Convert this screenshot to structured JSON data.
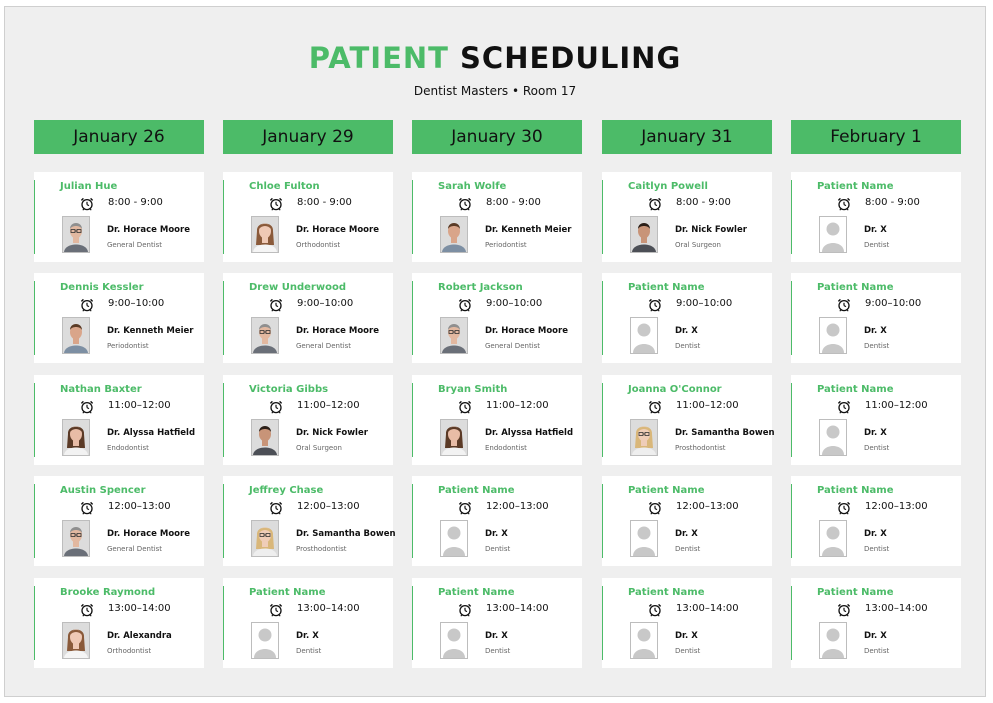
{
  "title": {
    "part1": "PATIENT",
    "part2": "SCHEDULING"
  },
  "subtitle": "Dentist Masters • Room 17",
  "colors": {
    "accent": "#4cbb68",
    "background": "#efefef",
    "card": "#ffffff"
  },
  "columns": [
    {
      "date": "January 26",
      "appointments": [
        {
          "patient": "Julian Hue",
          "time": "8:00 - 9:00",
          "doctor": "Dr. Horace Moore",
          "specialty": "General Dentist",
          "avatar": "male-glasses-grey"
        },
        {
          "patient": "Dennis Kessler",
          "time": "9:00–10:00",
          "doctor": "Dr. Kenneth Meier",
          "specialty": "Periodontist",
          "avatar": "male-brown"
        },
        {
          "patient": "Nathan Baxter",
          "time": "11:00–12:00",
          "doctor": "Dr. Alyssa Hatfield",
          "specialty": "Endodontist",
          "avatar": "female-brown"
        },
        {
          "patient": "Austin Spencer",
          "time": "12:00–13:00",
          "doctor": "Dr. Horace Moore",
          "specialty": "General Dentist",
          "avatar": "male-glasses-grey"
        },
        {
          "patient": "Brooke Raymond",
          "time": "13:00–14:00",
          "doctor": "Dr. Alexandra",
          "specialty": "Orthodontist",
          "avatar": "female-light"
        }
      ]
    },
    {
      "date": "January 29",
      "appointments": [
        {
          "patient": "Chloe Fulton",
          "time": "8:00 - 9:00",
          "doctor": "Dr. Horace Moore",
          "specialty": "Orthodontist",
          "avatar": "female-light"
        },
        {
          "patient": "Drew Underwood",
          "time": "9:00–10:00",
          "doctor": "Dr. Horace Moore",
          "specialty": "General Dentist",
          "avatar": "male-glasses-grey"
        },
        {
          "patient": "Victoria Gibbs",
          "time": "11:00–12:00",
          "doctor": "Dr. Nick Fowler",
          "specialty": "Oral Surgeon",
          "avatar": "male-dark"
        },
        {
          "patient": "Jeffrey Chase",
          "time": "12:00–13:00",
          "doctor": "Dr. Samantha Bowen",
          "specialty": "Prosthodontist",
          "avatar": "female-blonde"
        },
        {
          "patient": "Patient Name",
          "time": "13:00–14:00",
          "doctor": "Dr. X",
          "specialty": "Dentist",
          "avatar": "placeholder"
        }
      ]
    },
    {
      "date": "January 30",
      "appointments": [
        {
          "patient": "Sarah Wolfe",
          "time": "8:00 - 9:00",
          "doctor": "Dr. Kenneth Meier",
          "specialty": "Periodontist",
          "avatar": "male-brown"
        },
        {
          "patient": "Robert Jackson",
          "time": "9:00–10:00",
          "doctor": "Dr. Horace Moore",
          "specialty": "General Dentist",
          "avatar": "male-glasses-grey"
        },
        {
          "patient": "Bryan Smith",
          "time": "11:00–12:00",
          "doctor": "Dr. Alyssa Hatfield",
          "specialty": "Endodontist",
          "avatar": "female-brown"
        },
        {
          "patient": "Patient Name",
          "time": "12:00–13:00",
          "doctor": "Dr. X",
          "specialty": "Dentist",
          "avatar": "placeholder"
        },
        {
          "patient": "Patient Name",
          "time": "13:00–14:00",
          "doctor": "Dr. X",
          "specialty": "Dentist",
          "avatar": "placeholder"
        }
      ]
    },
    {
      "date": "January 31",
      "appointments": [
        {
          "patient": "Caitlyn Powell",
          "time": "8:00 - 9:00",
          "doctor": "Dr. Nick Fowler",
          "specialty": "Oral Surgeon",
          "avatar": "male-dark"
        },
        {
          "patient": "Patient Name",
          "time": "9:00–10:00",
          "doctor": "Dr. X",
          "specialty": "Dentist",
          "avatar": "placeholder"
        },
        {
          "patient": "Joanna O'Connor",
          "time": "11:00–12:00",
          "doctor": "Dr. Samantha Bowen",
          "specialty": "Prosthodontist",
          "avatar": "female-blonde"
        },
        {
          "patient": "Patient Name",
          "time": "12:00–13:00",
          "doctor": "Dr. X",
          "specialty": "Dentist",
          "avatar": "placeholder"
        },
        {
          "patient": "Patient Name",
          "time": "13:00–14:00",
          "doctor": "Dr. X",
          "specialty": "Dentist",
          "avatar": "placeholder"
        }
      ]
    },
    {
      "date": "February 1",
      "appointments": [
        {
          "patient": "Patient Name",
          "time": "8:00 - 9:00",
          "doctor": "Dr. X",
          "specialty": "Dentist",
          "avatar": "placeholder"
        },
        {
          "patient": "Patient Name",
          "time": "9:00–10:00",
          "doctor": "Dr. X",
          "specialty": "Dentist",
          "avatar": "placeholder"
        },
        {
          "patient": "Patient Name",
          "time": "11:00–12:00",
          "doctor": "Dr. X",
          "specialty": "Dentist",
          "avatar": "placeholder"
        },
        {
          "patient": "Patient Name",
          "time": "12:00–13:00",
          "doctor": "Dr. X",
          "specialty": "Dentist",
          "avatar": "placeholder"
        },
        {
          "patient": "Patient Name",
          "time": "13:00–14:00",
          "doctor": "Dr. X",
          "specialty": "Dentist",
          "avatar": "placeholder"
        }
      ]
    }
  ]
}
